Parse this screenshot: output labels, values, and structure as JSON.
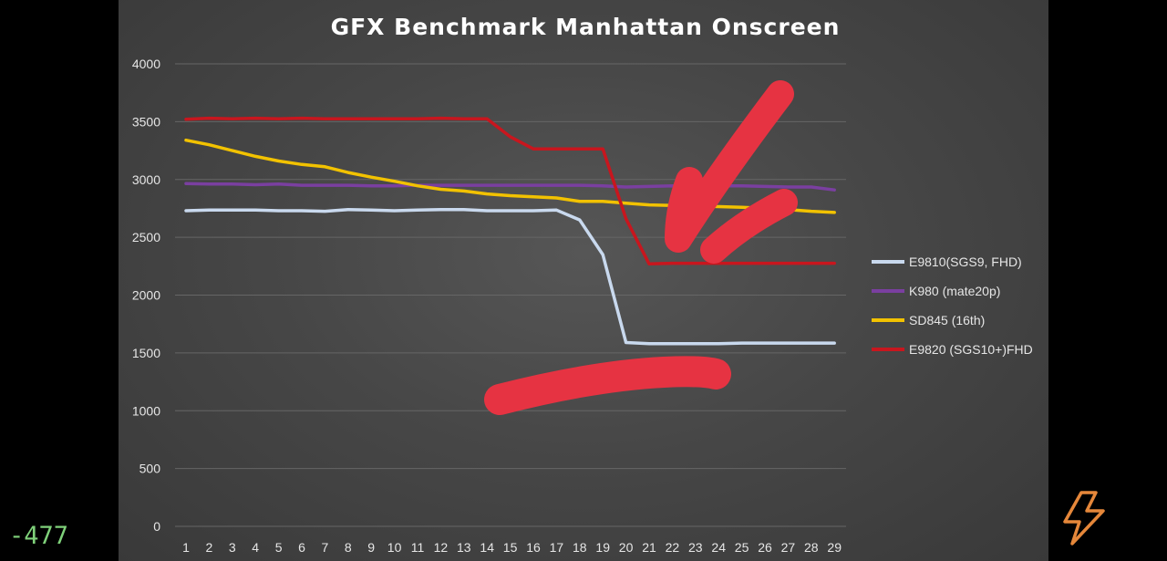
{
  "overlay": {
    "counter_text": "-477",
    "bolt_icon": "lightning-bolt-icon",
    "bolt_color": "#e5873a"
  },
  "colors": {
    "panel_bg": "#474747",
    "grid": "#666666",
    "annotation": "#e63342"
  },
  "chart_data": {
    "type": "line",
    "title": "GFX Benchmark Manhattan Onscreen",
    "xlabel": "",
    "ylabel": "",
    "ylim": [
      0,
      4000
    ],
    "yticks": [
      0,
      500,
      1000,
      1500,
      2000,
      2500,
      3000,
      3500,
      4000
    ],
    "grid": true,
    "legend_position": "right",
    "x": [
      1,
      2,
      3,
      4,
      5,
      6,
      7,
      8,
      9,
      10,
      11,
      12,
      13,
      14,
      15,
      16,
      17,
      18,
      19,
      20,
      21,
      22,
      23,
      24,
      25,
      26,
      27,
      28,
      29
    ],
    "series": [
      {
        "name": "E9810(SGS9, FHD)",
        "color": "#c9d9ee",
        "values": [
          2730,
          2735,
          2735,
          2735,
          2730,
          2730,
          2725,
          2740,
          2735,
          2730,
          2735,
          2740,
          2740,
          2730,
          2730,
          2730,
          2735,
          2650,
          2350,
          1590,
          1580,
          1580,
          1580,
          1580,
          1585,
          1585,
          1585,
          1585,
          1585
        ]
      },
      {
        "name": "K980 (mate20p)",
        "color": "#7a3fa0",
        "values": [
          2965,
          2960,
          2960,
          2955,
          2960,
          2950,
          2950,
          2950,
          2945,
          2945,
          2950,
          2950,
          2950,
          2950,
          2950,
          2950,
          2950,
          2950,
          2945,
          2935,
          2940,
          2945,
          2940,
          2945,
          2945,
          2940,
          2935,
          2935,
          2910
        ]
      },
      {
        "name": "SD845 (16th)",
        "color": "#f2c200",
        "values": [
          3340,
          3300,
          3250,
          3200,
          3160,
          3130,
          3110,
          3060,
          3020,
          2985,
          2945,
          2915,
          2900,
          2875,
          2860,
          2850,
          2840,
          2810,
          2810,
          2795,
          2780,
          2775,
          2770,
          2765,
          2760,
          2750,
          2740,
          2725,
          2715
        ]
      },
      {
        "name": "E9820 (SGS10+)FHD",
        "color": "#c8161e",
        "values": [
          3520,
          3530,
          3525,
          3530,
          3525,
          3530,
          3525,
          3525,
          3525,
          3525,
          3525,
          3530,
          3525,
          3525,
          3370,
          3265,
          3265,
          3265,
          3265,
          2660,
          2270,
          2275,
          2275,
          2275,
          2275,
          2275,
          2275,
          2275,
          2275
        ]
      }
    ]
  }
}
